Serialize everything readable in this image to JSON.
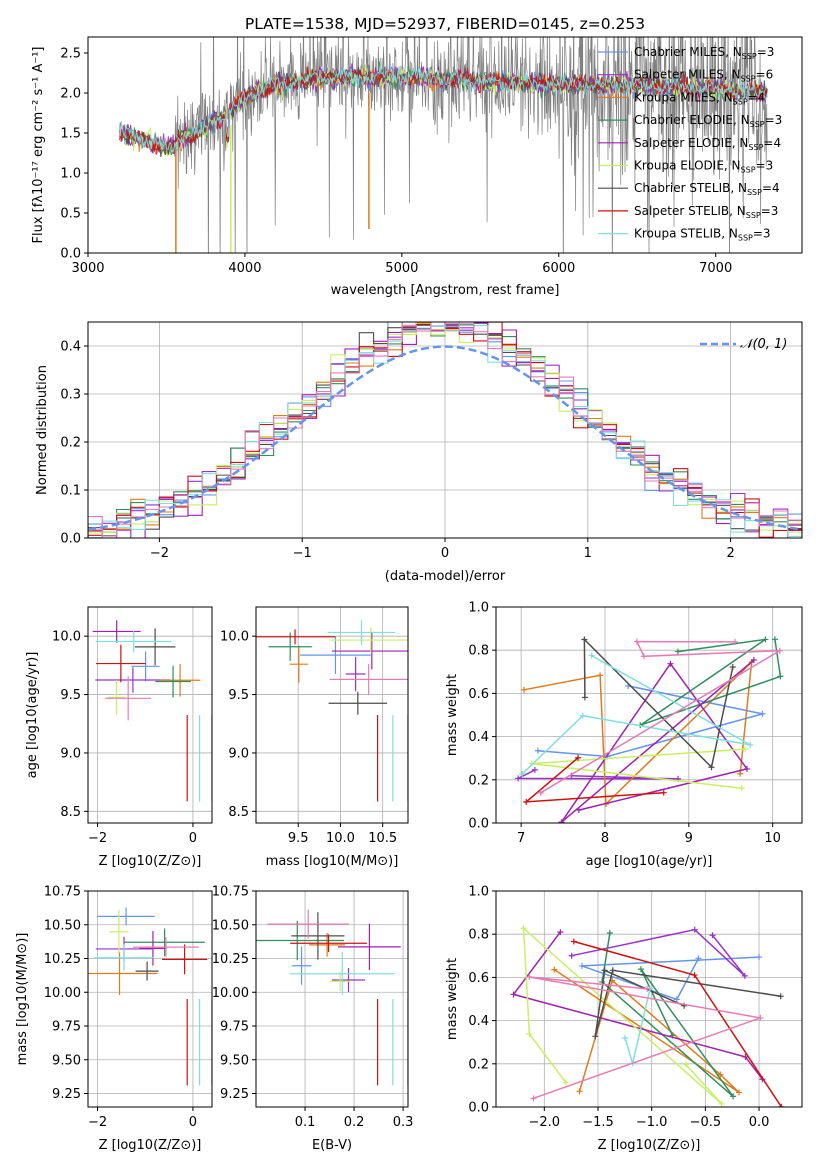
{
  "colors": {
    "c_miles": "#6495ed",
    "s_miles": "#9932cc",
    "k_miles": "#e07b1a",
    "c_elodie": "#2f8f5f",
    "s_elodie": "#a020b0",
    "k_elodie": "#c8f060",
    "c_stelib": "#4d4d4d",
    "s_stelib": "#d01010",
    "k_stelib": "#7fdfe0",
    "spectrum_bg": "#808080",
    "gauss": "#6495ed",
    "pink": "#e87bb5"
  },
  "chart_data": [
    {
      "id": "spectrum",
      "type": "line",
      "title": "PLATE=1538, MJD=52937, FIBERID=0145, z=0.253",
      "xlabel": "wavelength [Angstrom, rest frame]",
      "ylabel": "Flux [fλ10⁻¹⁷ erg cm⁻² s⁻¹ A⁻¹]",
      "xlim": [
        3000,
        7550
      ],
      "ylim": [
        0,
        2.7
      ],
      "xticks": [
        "3000",
        "4000",
        "5000",
        "6000",
        "7000"
      ],
      "yticks": [
        "0.0",
        "0.5",
        "1.0",
        "1.5",
        "2.0",
        "2.5"
      ],
      "grid": false,
      "legend_position": "upper-right",
      "legend": [
        {
          "label": "Chabrier MILES, N",
          "sub": "SSP",
          "eq": "=3"
        },
        {
          "label": "Salpeter MILES, N",
          "sub": "SSP",
          "eq": "=6"
        },
        {
          "label": "Kroupa MILES, N",
          "sub": "SSP",
          "eq": "=4"
        },
        {
          "label": "Chabrier ELODIE, N",
          "sub": "SSP",
          "eq": "=3"
        },
        {
          "label": "Salpeter ELODIE, N",
          "sub": "SSP",
          "eq": "=4"
        },
        {
          "label": "Kroupa ELODIE, N",
          "sub": "SSP",
          "eq": "=3"
        },
        {
          "label": "Chabrier STELIB, N",
          "sub": "SSP",
          "eq": "=4"
        },
        {
          "label": "Salpeter STELIB, N",
          "sub": "SSP",
          "eq": "=3"
        },
        {
          "label": "Kroupa STELIB, N",
          "sub": "SSP",
          "eq": "=3"
        }
      ],
      "model_profile": [
        [
          3200,
          1.5
        ],
        [
          3300,
          1.45
        ],
        [
          3400,
          1.4
        ],
        [
          3500,
          1.3
        ],
        [
          3560,
          1.35
        ],
        [
          3600,
          1.45
        ],
        [
          3700,
          1.5
        ],
        [
          3800,
          1.65
        ],
        [
          3900,
          1.75
        ],
        [
          4000,
          1.95
        ],
        [
          4200,
          2.1
        ],
        [
          4500,
          2.2
        ],
        [
          5000,
          2.2
        ],
        [
          5500,
          2.15
        ],
        [
          6000,
          2.1
        ],
        [
          6500,
          2.1
        ],
        [
          7000,
          2.05
        ],
        [
          7300,
          2.0
        ]
      ]
    },
    {
      "id": "residuals",
      "type": "histogram",
      "xlabel": "(data-model)/error",
      "ylabel": "Normed distribution",
      "xlim": [
        -2.5,
        2.5
      ],
      "ylim": [
        0,
        0.45
      ],
      "xticks": [
        "−2",
        "−1",
        "0",
        "1",
        "2"
      ],
      "yticks": [
        "0.0",
        "0.1",
        "0.2",
        "0.3",
        "0.4"
      ],
      "grid": true,
      "legend_label": "𝒩(0, 1)",
      "bin_width": 0.1
    },
    {
      "id": "age_vs_Z",
      "type": "errorbar",
      "xlabel": "Z [log10(Z/Z⊙)]",
      "ylabel": "age  [log10(age/yr)]",
      "xlim": [
        -2.2,
        0.4
      ],
      "ylim": [
        8.4,
        10.25
      ],
      "xticks": [
        "−2",
        "0"
      ],
      "yticks": [
        "8.5",
        "9.0",
        "9.5",
        "10.0"
      ],
      "grid": true
    },
    {
      "id": "age_vs_mass",
      "type": "errorbar",
      "xlabel": "mass [log10(M/M⊙)]",
      "xlim": [
        9.0,
        10.8
      ],
      "ylim": [
        8.4,
        10.25
      ],
      "xticks": [
        "9.5",
        "10.0",
        "10.5"
      ],
      "yticks": [
        "8.5",
        "9.0",
        "9.5",
        "10.0"
      ],
      "grid": true
    },
    {
      "id": "weight_vs_age",
      "type": "line",
      "xlabel": "age  [log10(age/yr)]",
      "ylabel": "mass weight",
      "xlim": [
        6.7,
        10.35
      ],
      "ylim": [
        0,
        1.0
      ],
      "xticks": [
        "7",
        "8",
        "9",
        "10"
      ],
      "yticks": [
        "0.0",
        "0.2",
        "0.4",
        "0.6",
        "0.8",
        "1.0"
      ],
      "grid": true
    },
    {
      "id": "mass_vs_Z",
      "type": "errorbar",
      "xlabel": "Z [log10(Z/Z⊙)]",
      "ylabel": "mass [log10(M/M⊙)]",
      "xlim": [
        -2.2,
        0.4
      ],
      "ylim": [
        9.15,
        10.75
      ],
      "xticks": [
        "−2",
        "0"
      ],
      "yticks": [
        "9.25",
        "9.50",
        "9.75",
        "10.00",
        "10.25",
        "10.50",
        "10.75"
      ],
      "grid": true
    },
    {
      "id": "mass_vs_ebv",
      "type": "errorbar",
      "xlabel": "E(B-V)",
      "xlim": [
        0.0,
        0.31
      ],
      "ylim": [
        9.15,
        10.75
      ],
      "xticks": [
        "0.1",
        "0.2",
        "0.3"
      ],
      "yticks": [
        "9.25",
        "9.50",
        "9.75",
        "10.00",
        "10.25",
        "10.50",
        "10.75"
      ],
      "grid": true
    },
    {
      "id": "weight_vs_Z",
      "type": "line",
      "xlabel": "Z [log10(Z/Z⊙)]",
      "ylabel": "mass weight",
      "xlim": [
        -2.45,
        0.4
      ],
      "ylim": [
        0,
        1.0
      ],
      "xticks": [
        "−2.0",
        "−1.5",
        "−1.0",
        "−0.5",
        "0.0"
      ],
      "yticks": [
        "0.0",
        "0.2",
        "0.4",
        "0.6",
        "0.8",
        "1.0"
      ],
      "grid": true
    }
  ]
}
